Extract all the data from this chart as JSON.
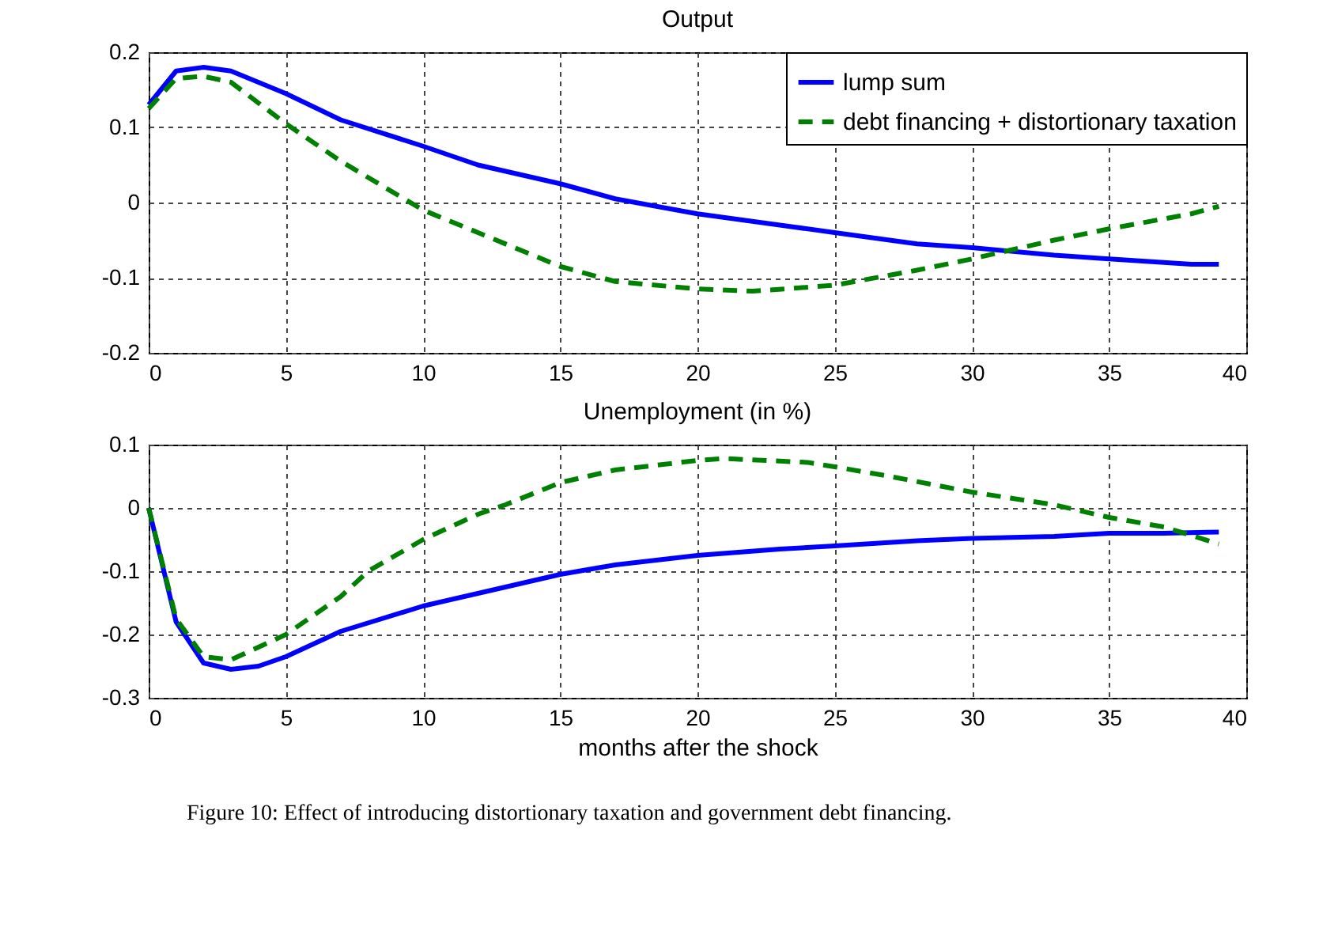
{
  "chart_data": [
    {
      "type": "line",
      "title": "Output",
      "xlim": [
        0,
        40
      ],
      "xticks": [
        0,
        5,
        10,
        15,
        20,
        25,
        30,
        35,
        40
      ],
      "ylim": [
        -0.2,
        0.2
      ],
      "yticks": [
        -0.2,
        -0.1,
        0,
        0.1,
        0.2
      ],
      "grid": true,
      "legend": "top right",
      "marker": "none",
      "series": [
        {
          "name": "lump sum",
          "color": "#0000ff",
          "line_style": "solid",
          "x": [
            0,
            1,
            2,
            3,
            5,
            7,
            10,
            12,
            15,
            17,
            20,
            23,
            25,
            28,
            30,
            33,
            35,
            38,
            39
          ],
          "values": [
            0.13,
            0.175,
            0.18,
            0.175,
            0.145,
            0.11,
            0.075,
            0.05,
            0.025,
            0.005,
            -0.015,
            -0.03,
            -0.04,
            -0.055,
            -0.06,
            -0.07,
            -0.075,
            -0.082,
            -0.082
          ]
        },
        {
          "name": "debt financing + distortionary taxation",
          "color": "#008000",
          "line_style": "dashed",
          "x": [
            0,
            1,
            2,
            3,
            5,
            7,
            10,
            12,
            15,
            17,
            20,
            22,
            25,
            28,
            30,
            33,
            35,
            38,
            39
          ],
          "values": [
            0.125,
            0.165,
            0.168,
            0.16,
            0.105,
            0.055,
            -0.01,
            -0.04,
            -0.085,
            -0.105,
            -0.115,
            -0.118,
            -0.11,
            -0.09,
            -0.075,
            -0.05,
            -0.035,
            -0.015,
            -0.005
          ]
        }
      ]
    },
    {
      "type": "line",
      "title": "Unemployment (in %)",
      "xlabel": "months after the shock",
      "xlim": [
        0,
        40
      ],
      "xticks": [
        0,
        5,
        10,
        15,
        20,
        25,
        30,
        35,
        40
      ],
      "ylim": [
        -0.3,
        0.1
      ],
      "yticks": [
        -0.3,
        -0.2,
        -0.1,
        0,
        0.1
      ],
      "grid": true,
      "marker": "none",
      "annotations": [
        "Figure 10: Effect of introducing distortionary taxation and government debt financing."
      ],
      "series": [
        {
          "color": "#0000ff",
          "line_style": "solid",
          "x": [
            0,
            1,
            2,
            3,
            4,
            5,
            7,
            10,
            12,
            15,
            17,
            20,
            23,
            25,
            28,
            30,
            33,
            35,
            37,
            39
          ],
          "values": [
            0,
            -0.18,
            -0.245,
            -0.255,
            -0.25,
            -0.235,
            -0.195,
            -0.155,
            -0.135,
            -0.105,
            -0.09,
            -0.075,
            -0.065,
            -0.06,
            -0.052,
            -0.048,
            -0.045,
            -0.04,
            -0.04,
            -0.038
          ]
        },
        {
          "color": "#008000",
          "line_style": "dashed",
          "x": [
            0,
            1,
            2,
            3,
            5,
            7,
            8,
            10,
            12,
            13,
            15,
            17,
            20,
            21,
            24,
            25,
            27,
            30,
            33,
            35,
            37,
            39
          ],
          "values": [
            0,
            -0.175,
            -0.235,
            -0.24,
            -0.2,
            -0.14,
            -0.1,
            -0.05,
            -0.01,
            0.005,
            0.04,
            0.06,
            0.075,
            0.078,
            0.072,
            0.065,
            0.05,
            0.025,
            0.005,
            -0.015,
            -0.03,
            -0.057
          ]
        }
      ]
    }
  ]
}
